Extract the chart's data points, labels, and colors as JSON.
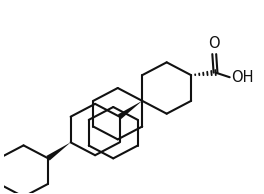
{
  "background_color": "#ffffff",
  "line_color": "#111111",
  "line_width": 1.5,
  "text_color": "#111111",
  "font_size": 10.5,
  "figsize": [
    2.64,
    1.94
  ],
  "dpi": 100,
  "xlim": [
    0.0,
    10.0
  ],
  "ylim": [
    0.0,
    7.5
  ]
}
